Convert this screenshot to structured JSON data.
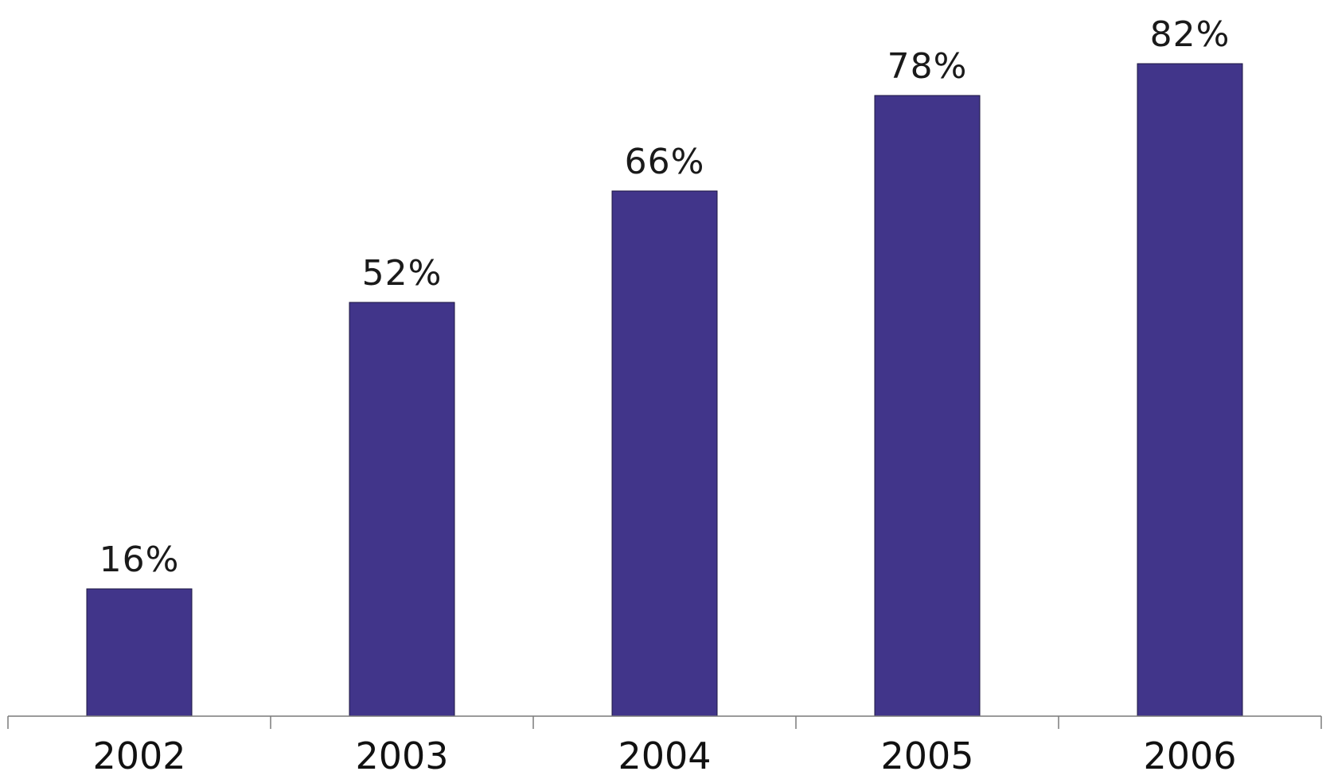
{
  "chart_data": {
    "type": "bar",
    "categories": [
      "2002",
      "2003",
      "2004",
      "2005",
      "2006"
    ],
    "values": [
      16,
      52,
      66,
      78,
      82
    ],
    "data_labels": [
      "16%",
      "52%",
      "66%",
      "78%",
      "82%"
    ],
    "title": "",
    "xlabel": "",
    "ylabel": "",
    "ylim": [
      0,
      90
    ],
    "grid": false,
    "legend": "none",
    "colors": {
      "bar": "#41358A",
      "axis": "#7a7a7a",
      "text": "#1a1a1a"
    }
  }
}
